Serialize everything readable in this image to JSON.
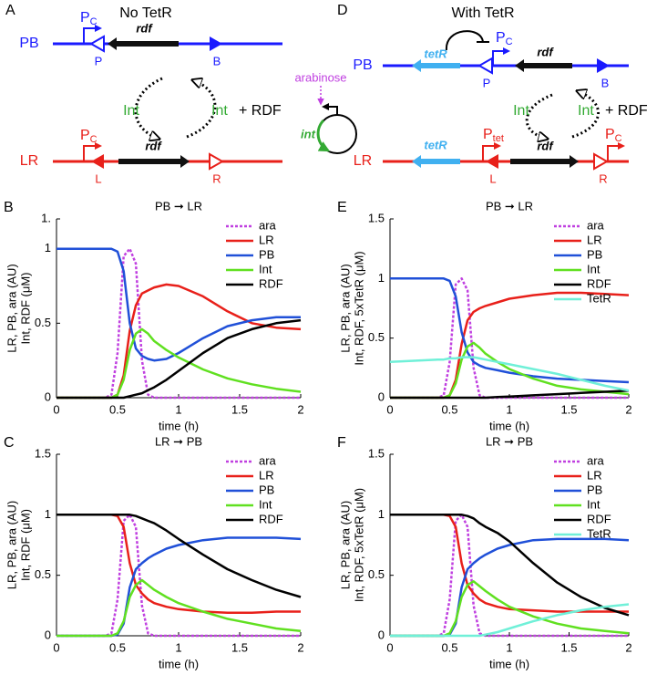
{
  "figure_a": {
    "panel": "A",
    "title": "No TetR",
    "pb": "PB",
    "lr": "LR",
    "promoter_pb": {
      "main": "P",
      "sub": "C"
    },
    "promoter_lr": {
      "main": "P",
      "sub": "C"
    },
    "site_p": "P",
    "site_b": "B",
    "site_l": "L",
    "site_r": "R",
    "gene_pb": "rdf",
    "gene_lr": "rdf",
    "int_left": "Int",
    "int_right": "Int",
    "rdf_right": "+ RDF"
  },
  "plasmid": {
    "inducer": "arabinose",
    "gene": "int"
  },
  "figure_d": {
    "panel": "D",
    "title": "With TetR",
    "pb": "PB",
    "lr": "LR",
    "tetr_pb": "tetR",
    "tetr_lr": "tetR",
    "promoter_pb": {
      "main": "P",
      "sub": "C"
    },
    "promoter_lr_tet": {
      "main": "P",
      "sub": "tet"
    },
    "promoter_lr_c": {
      "main": "P",
      "sub": "C"
    },
    "site_p": "P",
    "site_b": "B",
    "site_l": "L",
    "site_r": "R",
    "gene_pb": "rdf",
    "gene_lr": "rdf",
    "int_left": "Int",
    "int_right": "Int",
    "rdf_right": "+ RDF"
  },
  "chart_data": [
    {
      "type": "line",
      "panel": "B",
      "title": "PB ➞ LR",
      "xlabel": "time (h)",
      "ylabel": [
        "LR, PB, ara (AU)",
        "Int, RDF (μM)"
      ],
      "x": [
        0,
        0.2,
        0.4,
        0.45,
        0.5,
        0.55,
        0.6,
        0.65,
        0.7,
        0.75,
        0.8,
        0.9,
        1,
        1.2,
        1.4,
        1.6,
        1.8,
        2
      ],
      "xlim": [
        0,
        2
      ],
      "xticks": [
        0,
        0.5,
        1,
        1.5,
        2
      ],
      "ylim": [
        0,
        1.2
      ],
      "yticks": [
        0,
        0.5,
        1,
        {
          "value": 1.2,
          "label": "1."
        }
      ],
      "legend": "upper right",
      "series": [
        {
          "name": "ara",
          "color": "#c040e0",
          "linestyle": "dotted",
          "values": [
            0,
            0,
            0,
            0.02,
            0.3,
            0.95,
            1,
            0.9,
            0.25,
            0.02,
            0,
            0,
            0,
            0,
            0,
            0,
            0,
            0
          ]
        },
        {
          "name": "LR",
          "color": "#e8201a",
          "values": [
            0,
            0,
            0,
            0,
            0.02,
            0.15,
            0.45,
            0.62,
            0.7,
            0.72,
            0.74,
            0.76,
            0.75,
            0.68,
            0.58,
            0.5,
            0.47,
            0.46
          ]
        },
        {
          "name": "PB",
          "color": "#2050d8",
          "values": [
            1,
            1,
            1,
            1,
            0.98,
            0.85,
            0.5,
            0.33,
            0.28,
            0.26,
            0.25,
            0.26,
            0.3,
            0.4,
            0.48,
            0.52,
            0.54,
            0.54
          ]
        },
        {
          "name": "Int",
          "color": "#60e020",
          "values": [
            0,
            0,
            0,
            0,
            0.02,
            0.12,
            0.32,
            0.43,
            0.46,
            0.43,
            0.38,
            0.32,
            0.27,
            0.19,
            0.13,
            0.09,
            0.06,
            0.04
          ]
        },
        {
          "name": "RDF",
          "color": "#000000",
          "values": [
            0,
            0,
            0,
            0,
            0,
            0,
            0.01,
            0.02,
            0.03,
            0.05,
            0.07,
            0.12,
            0.18,
            0.3,
            0.4,
            0.46,
            0.5,
            0.52
          ]
        }
      ]
    },
    {
      "type": "line",
      "panel": "E",
      "title": "PB ➞ LR",
      "xlabel": "time (h)",
      "ylabel": [
        "LR, PB, ara (AU)",
        "Int, RDF, 5xTetR (μM)"
      ],
      "x": [
        0,
        0.2,
        0.4,
        0.45,
        0.5,
        0.55,
        0.6,
        0.65,
        0.7,
        0.75,
        0.8,
        0.9,
        1,
        1.2,
        1.4,
        1.6,
        1.8,
        2
      ],
      "xlim": [
        0,
        2
      ],
      "xticks": [
        0,
        0.5,
        1,
        1.5,
        2
      ],
      "ylim": [
        0,
        1.5
      ],
      "yticks": [
        0,
        0.5,
        1,
        1.5
      ],
      "legend": "upper right",
      "series": [
        {
          "name": "ara",
          "color": "#c040e0",
          "linestyle": "dotted",
          "values": [
            0,
            0,
            0,
            0.02,
            0.3,
            0.95,
            1,
            0.9,
            0.25,
            0.02,
            0,
            0,
            0,
            0,
            0,
            0,
            0,
            0
          ]
        },
        {
          "name": "LR",
          "color": "#e8201a",
          "values": [
            0,
            0,
            0,
            0,
            0.02,
            0.15,
            0.45,
            0.65,
            0.72,
            0.75,
            0.77,
            0.8,
            0.83,
            0.86,
            0.88,
            0.88,
            0.87,
            0.86
          ]
        },
        {
          "name": "PB",
          "color": "#2050d8",
          "values": [
            1,
            1,
            1,
            1,
            0.98,
            0.85,
            0.55,
            0.38,
            0.3,
            0.27,
            0.25,
            0.23,
            0.21,
            0.18,
            0.16,
            0.15,
            0.14,
            0.13
          ]
        },
        {
          "name": "Int",
          "color": "#60e020",
          "values": [
            0,
            0,
            0,
            0,
            0.02,
            0.12,
            0.32,
            0.43,
            0.46,
            0.42,
            0.37,
            0.3,
            0.24,
            0.16,
            0.1,
            0.07,
            0.05,
            0.03
          ]
        },
        {
          "name": "RDF",
          "color": "#000000",
          "values": [
            0,
            0,
            0,
            0,
            0,
            0,
            0,
            0,
            0,
            0,
            0,
            0.005,
            0.01,
            0.02,
            0.03,
            0.04,
            0.05,
            0.06
          ]
        },
        {
          "name": "TetR",
          "color": "#70f0d8",
          "values": [
            0.3,
            0.31,
            0.32,
            0.32,
            0.33,
            0.33,
            0.34,
            0.34,
            0.34,
            0.33,
            0.32,
            0.3,
            0.28,
            0.24,
            0.2,
            0.15,
            0.1,
            0.06
          ]
        }
      ]
    },
    {
      "type": "line",
      "panel": "C",
      "title": "LR ➞ PB",
      "xlabel": "time (h)",
      "ylabel": [
        "LR, PB, ara (AU)",
        "Int, RDF (μM)"
      ],
      "x": [
        0,
        0.2,
        0.4,
        0.45,
        0.5,
        0.55,
        0.6,
        0.65,
        0.7,
        0.75,
        0.8,
        0.9,
        1,
        1.2,
        1.4,
        1.6,
        1.8,
        2
      ],
      "xlim": [
        0,
        2
      ],
      "xticks": [
        0,
        0.5,
        1,
        1.5,
        2
      ],
      "ylim": [
        0,
        1.5
      ],
      "yticks": [
        0,
        0.5,
        1,
        1.5
      ],
      "legend": "upper right",
      "series": [
        {
          "name": "ara",
          "color": "#c040e0",
          "linestyle": "dotted",
          "values": [
            0,
            0,
            0,
            0.02,
            0.3,
            0.95,
            1,
            0.9,
            0.25,
            0.02,
            0,
            0,
            0,
            0,
            0,
            0,
            0,
            0
          ]
        },
        {
          "name": "LR",
          "color": "#e8201a",
          "values": [
            1,
            1,
            1,
            1,
            0.99,
            0.9,
            0.6,
            0.42,
            0.35,
            0.3,
            0.27,
            0.24,
            0.22,
            0.2,
            0.19,
            0.19,
            0.2,
            0.2
          ]
        },
        {
          "name": "PB",
          "color": "#2050d8",
          "values": [
            0,
            0,
            0,
            0,
            0.01,
            0.1,
            0.4,
            0.55,
            0.6,
            0.64,
            0.67,
            0.72,
            0.75,
            0.79,
            0.81,
            0.81,
            0.81,
            0.8
          ]
        },
        {
          "name": "Int",
          "color": "#60e020",
          "values": [
            0,
            0,
            0,
            0,
            0.02,
            0.12,
            0.32,
            0.42,
            0.46,
            0.42,
            0.38,
            0.32,
            0.27,
            0.2,
            0.14,
            0.1,
            0.06,
            0.04
          ]
        },
        {
          "name": "RDF",
          "color": "#000000",
          "values": [
            1,
            1,
            1,
            1,
            1,
            1,
            1,
            0.99,
            0.97,
            0.95,
            0.93,
            0.87,
            0.8,
            0.67,
            0.55,
            0.46,
            0.38,
            0.32
          ]
        }
      ]
    },
    {
      "type": "line",
      "panel": "F",
      "title": "LR ➞ PB",
      "xlabel": "time (h)",
      "ylabel": [
        "LR, PB, ara (AU)",
        "Int, RDF, 5xTetR (μM)"
      ],
      "x": [
        0,
        0.2,
        0.4,
        0.45,
        0.5,
        0.55,
        0.6,
        0.65,
        0.7,
        0.75,
        0.8,
        0.9,
        1,
        1.2,
        1.4,
        1.6,
        1.8,
        2
      ],
      "xlim": [
        0,
        2
      ],
      "xticks": [
        0,
        0.5,
        1,
        1.5,
        2
      ],
      "ylim": [
        0,
        1.5
      ],
      "yticks": [
        0,
        0.5,
        1,
        1.5
      ],
      "legend": "upper right",
      "series": [
        {
          "name": "ara",
          "color": "#c040e0",
          "linestyle": "dotted",
          "values": [
            0,
            0,
            0,
            0.02,
            0.3,
            0.95,
            1,
            0.9,
            0.25,
            0.02,
            0,
            0,
            0,
            0,
            0,
            0,
            0,
            0
          ]
        },
        {
          "name": "LR",
          "color": "#e8201a",
          "values": [
            1,
            1,
            1,
            1,
            0.99,
            0.9,
            0.6,
            0.42,
            0.35,
            0.3,
            0.27,
            0.24,
            0.22,
            0.21,
            0.2,
            0.2,
            0.2,
            0.2
          ]
        },
        {
          "name": "PB",
          "color": "#2050d8",
          "values": [
            0,
            0,
            0,
            0,
            0.01,
            0.1,
            0.4,
            0.55,
            0.6,
            0.64,
            0.67,
            0.72,
            0.75,
            0.79,
            0.8,
            0.8,
            0.8,
            0.79
          ]
        },
        {
          "name": "Int",
          "color": "#60e020",
          "values": [
            0,
            0,
            0,
            0,
            0.02,
            0.12,
            0.32,
            0.42,
            0.45,
            0.41,
            0.37,
            0.3,
            0.24,
            0.16,
            0.1,
            0.06,
            0.04,
            0.02
          ]
        },
        {
          "name": "RDF",
          "color": "#000000",
          "values": [
            1,
            1,
            1,
            1,
            1,
            1,
            1,
            0.99,
            0.97,
            0.93,
            0.9,
            0.85,
            0.78,
            0.6,
            0.44,
            0.32,
            0.23,
            0.17
          ]
        },
        {
          "name": "TetR",
          "color": "#70f0d8",
          "values": [
            0,
            0,
            0,
            0,
            0,
            0,
            0,
            0,
            0,
            0,
            0.01,
            0.03,
            0.06,
            0.12,
            0.17,
            0.21,
            0.24,
            0.26
          ]
        }
      ]
    }
  ]
}
